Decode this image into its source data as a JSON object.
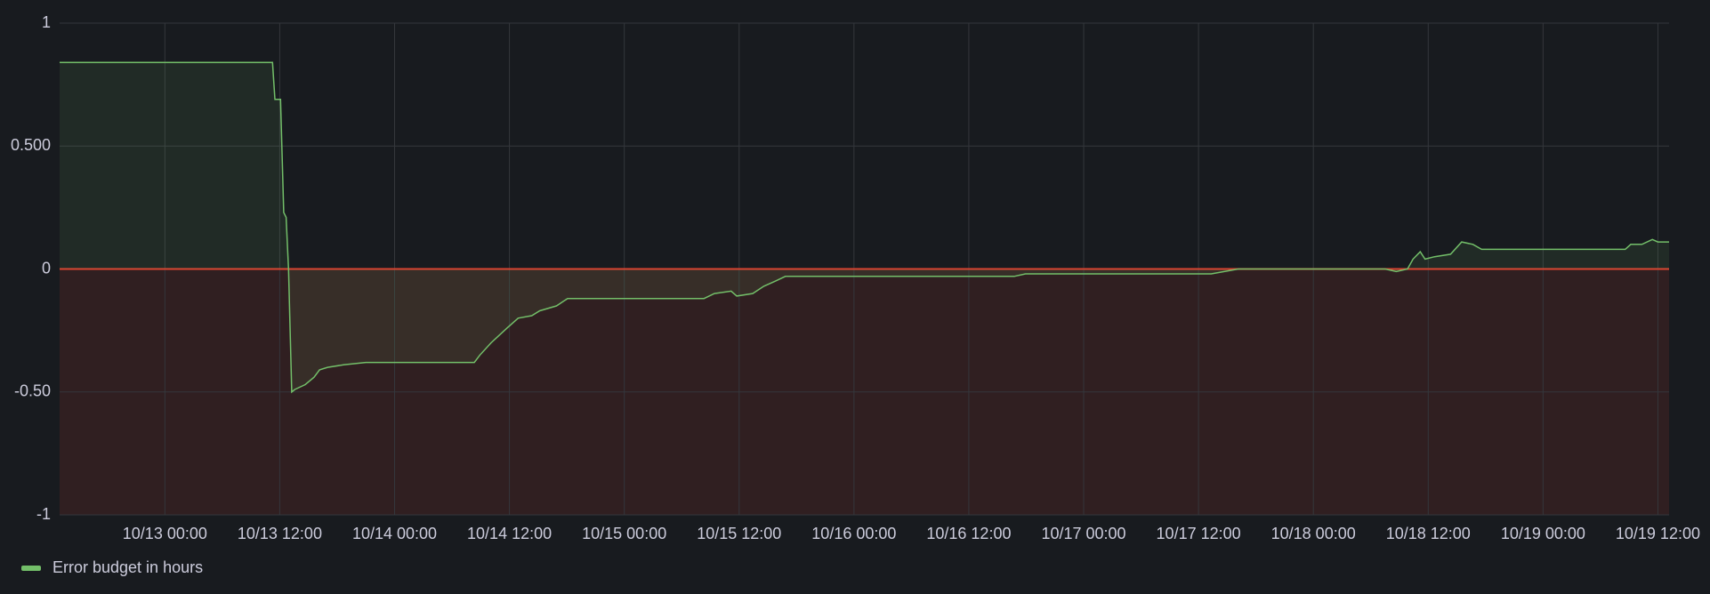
{
  "chart_data": {
    "type": "line",
    "x": [
      "10/12 13:00",
      "10/13 11:15",
      "10/13 11:30",
      "10/13 12:05",
      "10/13 12:25",
      "10/13 12:40",
      "10/13 12:55",
      "10/13 13:15",
      "10/13 13:35",
      "10/13 14:40",
      "10/13 15:35",
      "10/13 16:10",
      "10/13 17:00",
      "10/13 18:40",
      "10/13 21:00",
      "10/14 08:20",
      "10/14 08:55",
      "10/14 10:05",
      "10/14 11:45",
      "10/14 12:55",
      "10/14 14:20",
      "10/14 15:10",
      "10/14 16:55",
      "10/14 18:05",
      "10/15 08:20",
      "10/15 09:25",
      "10/15 11:10",
      "10/15 11:45",
      "10/15 13:25",
      "10/15 14:35",
      "10/15 15:45",
      "10/15 16:50",
      "10/16 16:45",
      "10/16 17:55",
      "10/17 13:20",
      "10/17 16:10",
      "10/18 07:30",
      "10/18 08:40",
      "10/18 09:50",
      "10/18 10:25",
      "10/18 11:10",
      "10/18 11:40",
      "10/18 12:40",
      "10/18 14:20",
      "10/18 15:30",
      "10/18 16:40",
      "10/18 17:35",
      "10/19 08:35",
      "10/19 09:10",
      "10/19 10:20",
      "10/19 11:25",
      "10/19 12:00",
      "10/19 13:10"
    ],
    "series": [
      {
        "name": "Error budget in hours",
        "color": "#73bf69",
        "values": [
          0.84,
          0.84,
          0.69,
          0.69,
          0.23,
          0.21,
          0.0,
          -0.5,
          -0.49,
          -0.47,
          -0.44,
          -0.41,
          -0.4,
          -0.39,
          -0.38,
          -0.38,
          -0.35,
          -0.3,
          -0.24,
          -0.2,
          -0.19,
          -0.17,
          -0.15,
          -0.12,
          -0.12,
          -0.1,
          -0.09,
          -0.11,
          -0.1,
          -0.07,
          -0.05,
          -0.03,
          -0.03,
          -0.02,
          -0.02,
          0.0,
          0.0,
          -0.01,
          0.0,
          0.04,
          0.07,
          0.04,
          0.05,
          0.06,
          0.11,
          0.1,
          0.08,
          0.08,
          0.1,
          0.1,
          0.12,
          0.11,
          0.11
        ]
      }
    ],
    "xlim": [
      "10/12 13:00",
      "10/19 13:10"
    ],
    "xticks": [
      "10/13 00:00",
      "10/13 12:00",
      "10/14 00:00",
      "10/14 12:00",
      "10/15 00:00",
      "10/15 12:00",
      "10/16 00:00",
      "10/16 12:00",
      "10/17 00:00",
      "10/17 12:00",
      "10/18 00:00",
      "10/18 12:00",
      "10/19 00:00",
      "10/19 12:00"
    ],
    "ylim": [
      -1,
      1
    ],
    "yticks": [
      -1,
      {
        "value": -0.5,
        "label": "-0.50"
      },
      0,
      {
        "value": 0.5,
        "label": "0.500"
      },
      1
    ],
    "threshold": 0,
    "threshold_color": "#e0402f",
    "grid": true,
    "legend": "bottom-left"
  }
}
